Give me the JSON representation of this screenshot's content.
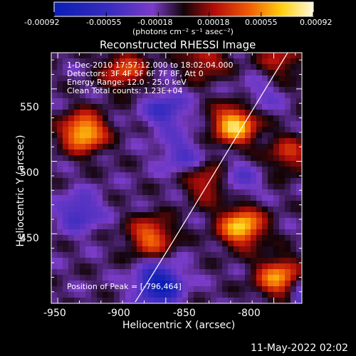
{
  "chart_data": {
    "type": "heatmap",
    "title": "Reconstructed RHESSI Image",
    "xlabel": "Heliocentric X (arcsec)",
    "ylabel": "Heliocentric Y (arcsec)",
    "x_ticks": [
      -950,
      -900,
      -850,
      -800
    ],
    "y_ticks": [
      450,
      500,
      550
    ],
    "xlim": [
      -953,
      -837
    ],
    "ylim": [
      402,
      575
    ],
    "colorbar": {
      "ticks": [
        "-0.00092",
        "-0.00055",
        "-0.00018",
        "0.00018",
        "0.00055",
        "0.00092"
      ],
      "units": "(photons cm⁻² s⁻¹ asec⁻²)",
      "range": [
        -0.00092,
        0.00092
      ]
    },
    "annotations": [
      "1-Dec-2010 17:57:12.000 to 18:02:04.000",
      "Detectors: 3F 4F 5F 6F 7F 8F, Att 0",
      "Energy Range: 12.0 - 25.0 keV",
      "Clean    Total counts: 1.23E+04"
    ],
    "peak_label": "Position of Peak = [-796,464]",
    "peak": [
      -796,
      464
    ],
    "sources": [
      {
        "x": -938,
        "y": 520,
        "v": 0.00085
      },
      {
        "x": -919,
        "y": 563,
        "v": 0.0005
      },
      {
        "x": -868,
        "y": 525,
        "v": 0.00088
      },
      {
        "x": -865,
        "y": 455,
        "v": 0.00085
      },
      {
        "x": -848,
        "y": 420,
        "v": 0.0007
      },
      {
        "x": -907,
        "y": 448,
        "v": 0.0006
      },
      {
        "x": -796,
        "y": 464,
        "v": 0.00092
      },
      {
        "x": -817,
        "y": 425,
        "v": 0.0006
      },
      {
        "x": -822,
        "y": 553,
        "v": 0.0006
      },
      {
        "x": -843,
        "y": 505,
        "v": 0.0004
      },
      {
        "x": -882,
        "y": 570,
        "v": 0.0004
      },
      {
        "x": -847,
        "y": 570,
        "v": 0.00035
      },
      {
        "x": -880,
        "y": 485,
        "v": 0.00045
      }
    ],
    "negatives": [
      {
        "x": -903,
        "y": 415,
        "v": -0.0008
      },
      {
        "x": -830,
        "y": 405,
        "v": -0.0007
      },
      {
        "x": -893,
        "y": 505,
        "v": -0.0003
      },
      {
        "x": -812,
        "y": 498,
        "v": -0.0005
      },
      {
        "x": -867,
        "y": 487,
        "v": -0.0003
      },
      {
        "x": -900,
        "y": 535,
        "v": -0.0004
      },
      {
        "x": -940,
        "y": 465,
        "v": -0.0004
      },
      {
        "x": -856,
        "y": 545,
        "v": -0.0002
      }
    ]
  },
  "footer_timestamp": "11-May-2022 02:02"
}
